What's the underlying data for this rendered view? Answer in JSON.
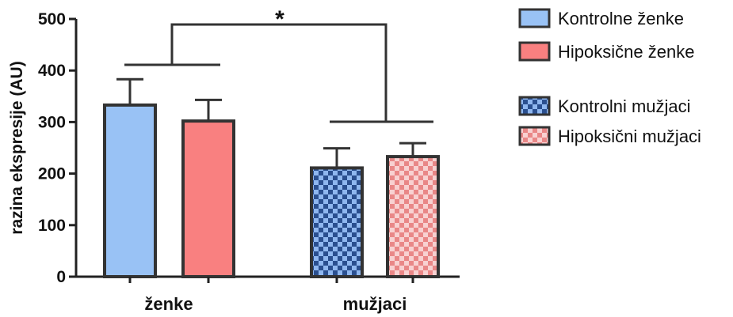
{
  "chart_data": {
    "type": "bar",
    "ylabel": "razina ekspresije (AU)",
    "ylim": [
      0,
      500
    ],
    "yticks": [
      0,
      100,
      200,
      300,
      400,
      500
    ],
    "groups": [
      "ženke",
      "mužjaci"
    ],
    "series": [
      {
        "name": "Kontrolne ženke",
        "group": "ženke",
        "value": 333,
        "error": 50,
        "color": "#99c2f5",
        "pattern": "solid"
      },
      {
        "name": "Hipoksične ženke",
        "group": "ženke",
        "value": 302,
        "error": 41,
        "color": "#f98080",
        "pattern": "solid"
      },
      {
        "name": "Kontrolni mužjaci",
        "group": "mužjaci",
        "value": 211,
        "error": 38,
        "color": "#4d83d6",
        "pattern": "checker"
      },
      {
        "name": "Hipoksični mužjaci",
        "group": "mužjaci",
        "value": 233,
        "error": 26,
        "color": "#f4a3a3",
        "pattern": "checker"
      }
    ],
    "significance": {
      "label": "*"
    },
    "legend": {
      "position": "right"
    }
  }
}
